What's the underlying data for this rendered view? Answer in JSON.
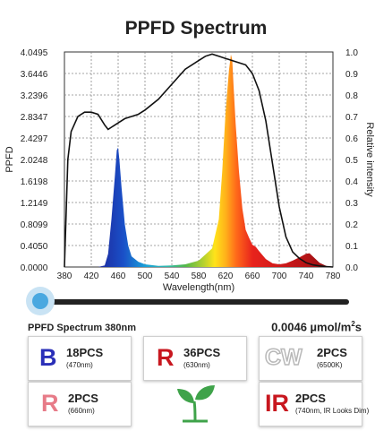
{
  "chart_data": {
    "type": "area",
    "title": "PPFD Spectrum",
    "xlabel": "Wavelength(nm)",
    "ylabel_left": "PPFD",
    "ylabel_right": "Relative intensity",
    "xlim": [
      380,
      780
    ],
    "ylim_left": [
      0,
      4.0495
    ],
    "ylim_right": [
      0,
      1.0
    ],
    "x_ticks": [
      "380",
      "420",
      "460",
      "500",
      "540",
      "580",
      "620",
      "660",
      "700",
      "740",
      "780"
    ],
    "y_ticks_left": [
      "0.0000",
      "0.4050",
      "0.8099",
      "1.2149",
      "1.6198",
      "2.0248",
      "2.4297",
      "2.8347",
      "3.2396",
      "3.6446",
      "4.0495"
    ],
    "y_ticks_right": [
      "0.0",
      "0.1",
      "0.2",
      "0.3",
      "0.4",
      "0.5",
      "0.6",
      "0.7",
      "0.8",
      "0.9",
      "1.0"
    ],
    "grid": true,
    "series": [
      {
        "x": [
          380,
          430,
          440,
          445,
          450,
          455,
          458,
          460,
          462,
          465,
          470,
          475,
          480,
          490,
          500,
          520,
          540,
          560,
          580,
          600,
          610,
          615,
          620,
          625,
          628,
          630,
          632,
          635,
          640,
          645,
          650,
          655,
          660,
          665,
          670,
          680,
          690,
          700,
          710,
          720,
          730,
          740,
          745,
          750,
          760,
          770,
          780
        ],
        "y": [
          0,
          0,
          0.03,
          0.25,
          0.9,
          1.7,
          2.2,
          2.25,
          2.0,
          1.5,
          0.8,
          0.4,
          0.2,
          0.1,
          0.05,
          0.02,
          0.03,
          0.05,
          0.12,
          0.35,
          0.9,
          1.8,
          2.9,
          3.7,
          4.0,
          3.9,
          3.4,
          2.7,
          1.8,
          1.1,
          0.7,
          0.55,
          0.42,
          0.38,
          0.3,
          0.15,
          0.07,
          0.05,
          0.07,
          0.12,
          0.18,
          0.25,
          0.26,
          0.2,
          0.08,
          0.02,
          0
        ]
      },
      {
        "x": [
          380,
          385,
          390,
          400,
          410,
          420,
          430,
          440,
          445,
          450,
          455,
          460,
          470,
          480,
          490,
          500,
          520,
          540,
          560,
          580,
          590,
          600,
          610,
          620,
          630,
          640,
          650,
          660,
          670,
          680,
          690,
          700,
          710,
          720,
          730,
          740,
          750,
          760,
          770,
          780
        ],
        "y": [
          0,
          0.5,
          0.63,
          0.7,
          0.72,
          0.72,
          0.71,
          0.66,
          0.64,
          0.65,
          0.66,
          0.67,
          0.69,
          0.7,
          0.71,
          0.73,
          0.78,
          0.85,
          0.92,
          0.96,
          0.98,
          0.99,
          0.98,
          0.97,
          0.96,
          0.95,
          0.94,
          0.9,
          0.82,
          0.68,
          0.48,
          0.28,
          0.14,
          0.07,
          0.04,
          0.02,
          0.01,
          0.005,
          0.002,
          0
        ]
      }
    ]
  },
  "slider": {
    "label": "PPFD Spectrum 380nm",
    "value": "0.0046 µmol/m",
    "superscript": "2",
    "suffix": "s"
  },
  "cards": [
    {
      "badge": "B",
      "count": "18PCS",
      "note": "(470nm)"
    },
    {
      "badge": "R",
      "count": "36PCS",
      "note": "(630nm)"
    },
    {
      "badge": "CW",
      "count": "2PCS",
      "note": "(6500K)"
    },
    {
      "badge": "R",
      "count": "2PCS",
      "note": "(660nm)"
    },
    {
      "badge": "IR",
      "count": "2PCS",
      "note": "(740nm, IR Looks Dim)"
    }
  ],
  "colors": {
    "blue_badge": "#2a2fb8",
    "red_badge": "#c8171f",
    "cw_badge": "#d6d6d6",
    "pink_badge": "#e77b88",
    "slider": "#4aa8e0",
    "plant": "#3fa34a"
  }
}
